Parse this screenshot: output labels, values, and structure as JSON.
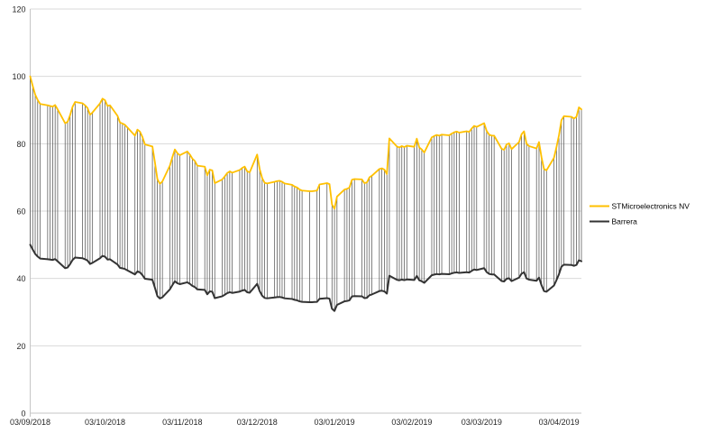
{
  "chart_data": {
    "type": "line",
    "title": "",
    "grid": true,
    "legend_position": "right",
    "y_axis": {
      "ticks": [
        0,
        20,
        40,
        60,
        80,
        100,
        120
      ],
      "ylim": [
        0,
        120
      ]
    },
    "x_axis": {
      "start_date": "2018-09-03",
      "frequency": "weekdays",
      "total_calendar_days": 221,
      "tick_labels": [
        "03/09/2018",
        "03/10/2018",
        "03/11/2018",
        "03/12/2018",
        "03/01/2019",
        "03/02/2019",
        "03/03/2019",
        "03/04/2019"
      ],
      "tick_day_offsets": [
        0,
        30,
        61,
        91,
        122,
        153,
        181,
        212
      ]
    },
    "high_low_lines": {
      "enabled": true,
      "color": "#555555",
      "skip_indices": [
        81,
        82,
        86
      ]
    },
    "series": [
      {
        "name": "STMicroelectronics NV",
        "color": "#FFC000",
        "width": 1.8,
        "values": [
          100,
          97.2,
          94.6,
          93,
          91.8,
          91.4,
          91.2,
          91,
          91.5,
          90.2,
          86.1,
          86.5,
          88.5,
          91,
          92.4,
          92,
          91.4,
          90.6,
          88.6,
          89.3,
          92,
          93.4,
          92.9,
          91.2,
          91.4,
          88.3,
          86.3,
          86,
          85.6,
          84.8,
          82.4,
          84.2,
          83.6,
          82,
          79.8,
          79.2,
          74.5,
          69.5,
          68.1,
          68.8,
          73.5,
          76,
          78.3,
          77.2,
          76.6,
          77.7,
          76.8,
          75.6,
          74.9,
          73.5,
          73.2,
          70.6,
          72.3,
          72.1,
          68.3,
          69.4,
          70.3,
          71.3,
          71.8,
          71.4,
          72.2,
          72.8,
          73.2,
          71.8,
          71.5,
          76.8,
          72.5,
          69.8,
          68.4,
          68.2,
          68.7,
          68.9,
          69,
          68.7,
          68.2,
          67.8,
          67.3,
          67,
          66.4,
          66.1,
          65.9,
          65.9,
          66,
          66.1,
          67.9,
          68.3,
          68,
          62,
          60.7,
          64.3,
          66.4,
          66.6,
          67,
          69.3,
          69.5,
          69.4,
          68.3,
          68.5,
          70,
          70.5,
          72.5,
          72.7,
          72.3,
          71,
          81.6,
          79.2,
          78.9,
          79.3,
          79,
          79.4,
          79.1,
          81.5,
          78.9,
          78.3,
          77.4,
          81.9,
          82.3,
          82.6,
          82.4,
          82.7,
          82.5,
          83,
          83.4,
          83.6,
          83.3,
          83.7,
          83.5,
          84.5,
          85.3,
          85,
          86.1,
          83.8,
          82.7,
          82.4,
          82.4,
          78.5,
          78.2,
          79.8,
          80.1,
          78.4,
          80.5,
          82.8,
          83.7,
          80,
          79.3,
          78.6,
          80.5,
          76,
          72.5,
          72.1,
          75.8,
          79,
          82.5,
          87,
          88.2,
          88,
          87.5,
          88,
          90.8,
          90.2
        ]
      },
      {
        "name": "Barrera",
        "color": "#333333",
        "width": 2,
        "values": [
          50,
          48.6,
          47.3,
          46.5,
          45.9,
          45.7,
          45.6,
          45.5,
          45.75,
          45.1,
          43.05,
          43.25,
          44.25,
          45.5,
          46.2,
          46,
          45.7,
          45.3,
          44.3,
          44.65,
          46,
          46.7,
          46.45,
          45.6,
          45.7,
          44.15,
          43.15,
          43,
          42.8,
          42.4,
          41.2,
          42.1,
          41.8,
          41,
          39.9,
          39.6,
          37.25,
          34.75,
          34.05,
          34.4,
          36.75,
          38,
          39.15,
          38.6,
          38.3,
          38.85,
          38.4,
          37.8,
          37.45,
          36.75,
          36.6,
          35.3,
          36.15,
          36.05,
          34.15,
          34.7,
          35.15,
          35.65,
          35.9,
          35.7,
          36.1,
          36.4,
          36.6,
          35.9,
          35.75,
          38.4,
          36.25,
          34.9,
          34.2,
          34.1,
          34.35,
          34.45,
          34.5,
          34.35,
          34.1,
          33.9,
          33.65,
          33.5,
          33.2,
          33.05,
          32.95,
          32.95,
          33,
          33.05,
          33.95,
          34.15,
          34,
          31,
          30.35,
          32.15,
          33.2,
          33.3,
          33.5,
          34.65,
          34.75,
          34.7,
          34.15,
          34.25,
          35,
          35.25,
          36.25,
          36.35,
          36.15,
          35.5,
          40.8,
          39.6,
          39.45,
          39.65,
          39.5,
          39.7,
          39.55,
          40.75,
          39.45,
          39.15,
          38.7,
          40.95,
          41.15,
          41.3,
          41.2,
          41.35,
          41.25,
          41.5,
          41.7,
          41.8,
          41.65,
          41.85,
          41.75,
          42.25,
          42.65,
          42.5,
          43.05,
          41.9,
          41.35,
          41.2,
          41.2,
          39.25,
          39.1,
          39.9,
          40.05,
          39.2,
          40.25,
          41.4,
          41.85,
          40,
          39.65,
          39.3,
          40.25,
          38,
          36.25,
          36.05,
          37.9,
          39.5,
          41.25,
          43.5,
          44.1,
          44,
          43.75,
          44,
          45.4,
          45.1
        ]
      }
    ]
  },
  "styles": {
    "gridline_color": "#D9D9D9",
    "axis_color": "#C6C6C6",
    "label_color": "#262626",
    "background": "#FFFFFF"
  }
}
